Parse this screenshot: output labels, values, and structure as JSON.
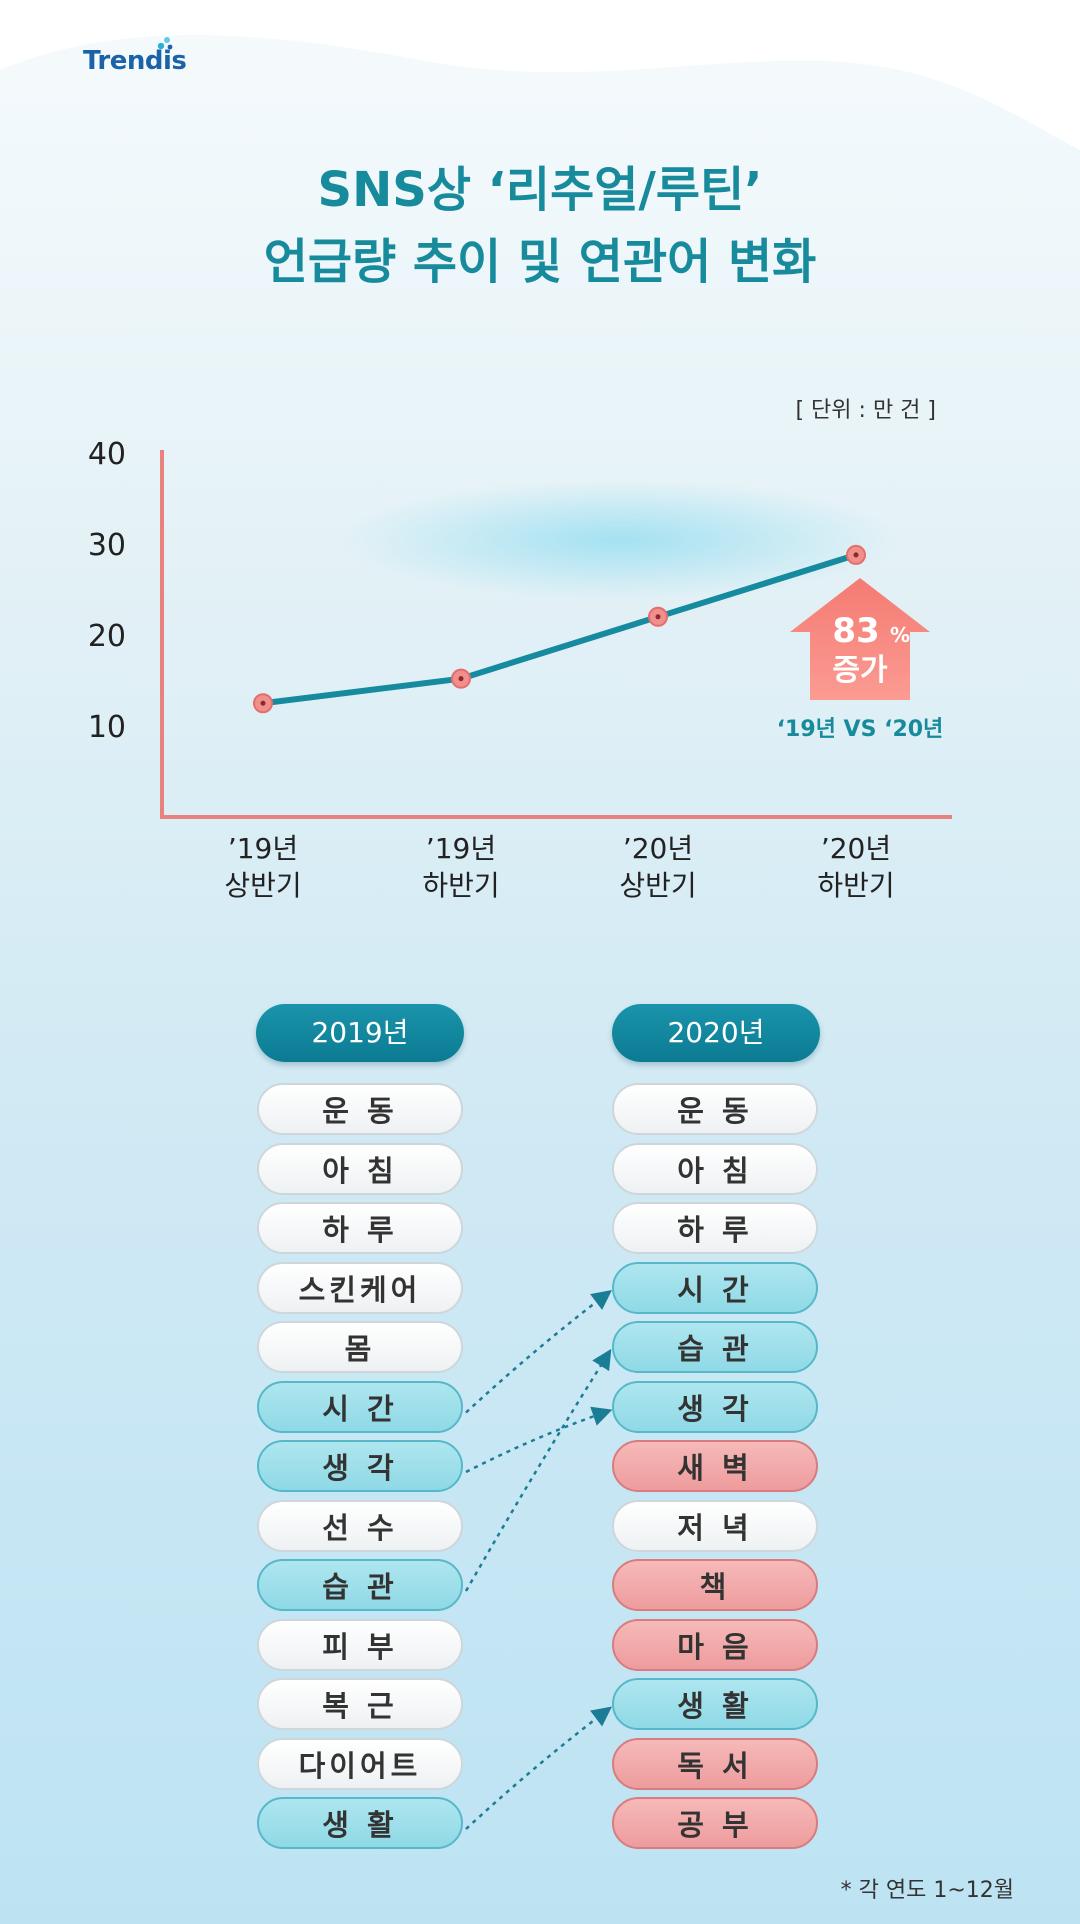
{
  "brand": {
    "logo_text": "Trendis"
  },
  "title": {
    "line1": "SNS상 ‘리추얼/루틴’",
    "line2": "언급량 추이 및 연관어 변화"
  },
  "colors": {
    "accent": "#178a9c",
    "line": "#168a9e",
    "axis": "#e8827e",
    "increase": "#ee6f6c"
  },
  "chart_data": {
    "type": "line",
    "unit_label": "[ 단위 : 만 건 ]",
    "categories": [
      [
        "’19년",
        "상반기"
      ],
      [
        "’19년",
        "하반기"
      ],
      [
        "’20년",
        "상반기"
      ],
      [
        "’20년",
        "하반기"
      ]
    ],
    "values": [
      12.5,
      15.2,
      22,
      28.8
    ],
    "y_ticks": [
      "10",
      "20",
      "30",
      "40"
    ],
    "ylim": [
      0,
      40
    ],
    "grid": false,
    "annotation": {
      "percent": "83",
      "percent_sign": "%",
      "label": "증가",
      "compare": "‘19년 VS ‘20년"
    }
  },
  "keywords": {
    "col2019": {
      "header": "2019년",
      "items": [
        {
          "label": "운 동",
          "tone": "neutral"
        },
        {
          "label": "아 침",
          "tone": "neutral"
        },
        {
          "label": "하 루",
          "tone": "neutral"
        },
        {
          "label": "스킨케어",
          "tone": "neutral"
        },
        {
          "label": "몸",
          "tone": "neutral"
        },
        {
          "label": "시 간",
          "tone": "blue"
        },
        {
          "label": "생 각",
          "tone": "blue"
        },
        {
          "label": "선 수",
          "tone": "neutral"
        },
        {
          "label": "습 관",
          "tone": "blue"
        },
        {
          "label": "피 부",
          "tone": "neutral"
        },
        {
          "label": "복 근",
          "tone": "neutral"
        },
        {
          "label": "다이어트",
          "tone": "neutral"
        },
        {
          "label": "생 활",
          "tone": "blue"
        }
      ]
    },
    "col2020": {
      "header": "2020년",
      "items": [
        {
          "label": "운 동",
          "tone": "neutral"
        },
        {
          "label": "아 침",
          "tone": "neutral"
        },
        {
          "label": "하 루",
          "tone": "neutral"
        },
        {
          "label": "시 간",
          "tone": "blue"
        },
        {
          "label": "습 관",
          "tone": "blue"
        },
        {
          "label": "생 각",
          "tone": "blue"
        },
        {
          "label": "새 벽",
          "tone": "pink"
        },
        {
          "label": "저 녁",
          "tone": "neutral"
        },
        {
          "label": "책",
          "tone": "pink"
        },
        {
          "label": "마 음",
          "tone": "pink"
        },
        {
          "label": "생 활",
          "tone": "blue"
        },
        {
          "label": "독 서",
          "tone": "pink"
        },
        {
          "label": "공 부",
          "tone": "pink"
        }
      ]
    },
    "links": [
      [
        5,
        3
      ],
      [
        6,
        5
      ],
      [
        8,
        4
      ],
      [
        12,
        10
      ]
    ]
  },
  "footnote": "* 각 연도 1~12월"
}
